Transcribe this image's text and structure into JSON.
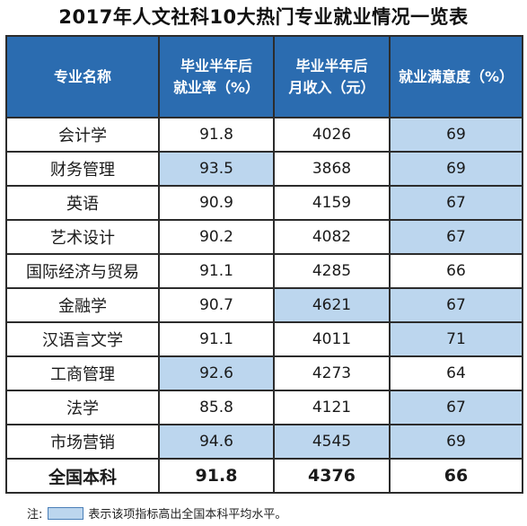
{
  "title": "2017年人文社科10大热门专业就业情况一览表",
  "headers": {
    "name": "专业名称",
    "rate_line1": "毕业半年后",
    "rate_line2": "就业率（%）",
    "income_line1": "毕业半年后",
    "income_line2": "月收入（元）",
    "satisfaction": "就业满意度（%）"
  },
  "rows": [
    {
      "name": "会计学",
      "rate": "91.8",
      "income": "4026",
      "satisfaction": "69",
      "hl": [
        false,
        false,
        true
      ]
    },
    {
      "name": "财务管理",
      "rate": "93.5",
      "income": "3868",
      "satisfaction": "69",
      "hl": [
        true,
        false,
        true
      ]
    },
    {
      "name": "英语",
      "rate": "90.9",
      "income": "4159",
      "satisfaction": "67",
      "hl": [
        false,
        false,
        true
      ]
    },
    {
      "name": "艺术设计",
      "rate": "90.2",
      "income": "4082",
      "satisfaction": "67",
      "hl": [
        false,
        false,
        true
      ]
    },
    {
      "name": "国际经济与贸易",
      "rate": "91.1",
      "income": "4285",
      "satisfaction": "66",
      "hl": [
        false,
        false,
        false
      ]
    },
    {
      "name": "金融学",
      "rate": "90.7",
      "income": "4621",
      "satisfaction": "67",
      "hl": [
        false,
        true,
        true
      ]
    },
    {
      "name": "汉语言文学",
      "rate": "91.1",
      "income": "4011",
      "satisfaction": "71",
      "hl": [
        false,
        false,
        true
      ]
    },
    {
      "name": "工商管理",
      "rate": "92.6",
      "income": "4273",
      "satisfaction": "64",
      "hl": [
        true,
        false,
        false
      ]
    },
    {
      "name": "法学",
      "rate": "85.8",
      "income": "4121",
      "satisfaction": "67",
      "hl": [
        false,
        false,
        true
      ]
    },
    {
      "name": "市场营销",
      "rate": "94.6",
      "income": "4545",
      "satisfaction": "69",
      "hl": [
        true,
        true,
        true
      ]
    }
  ],
  "total": {
    "name": "全国本科",
    "rate": "91.8",
    "income": "4376",
    "satisfaction": "66"
  },
  "note": {
    "prefix": "注:",
    "text": "表示该项指标高出全国本科平均水平。",
    "highlight_color": "#bcd6ee"
  }
}
